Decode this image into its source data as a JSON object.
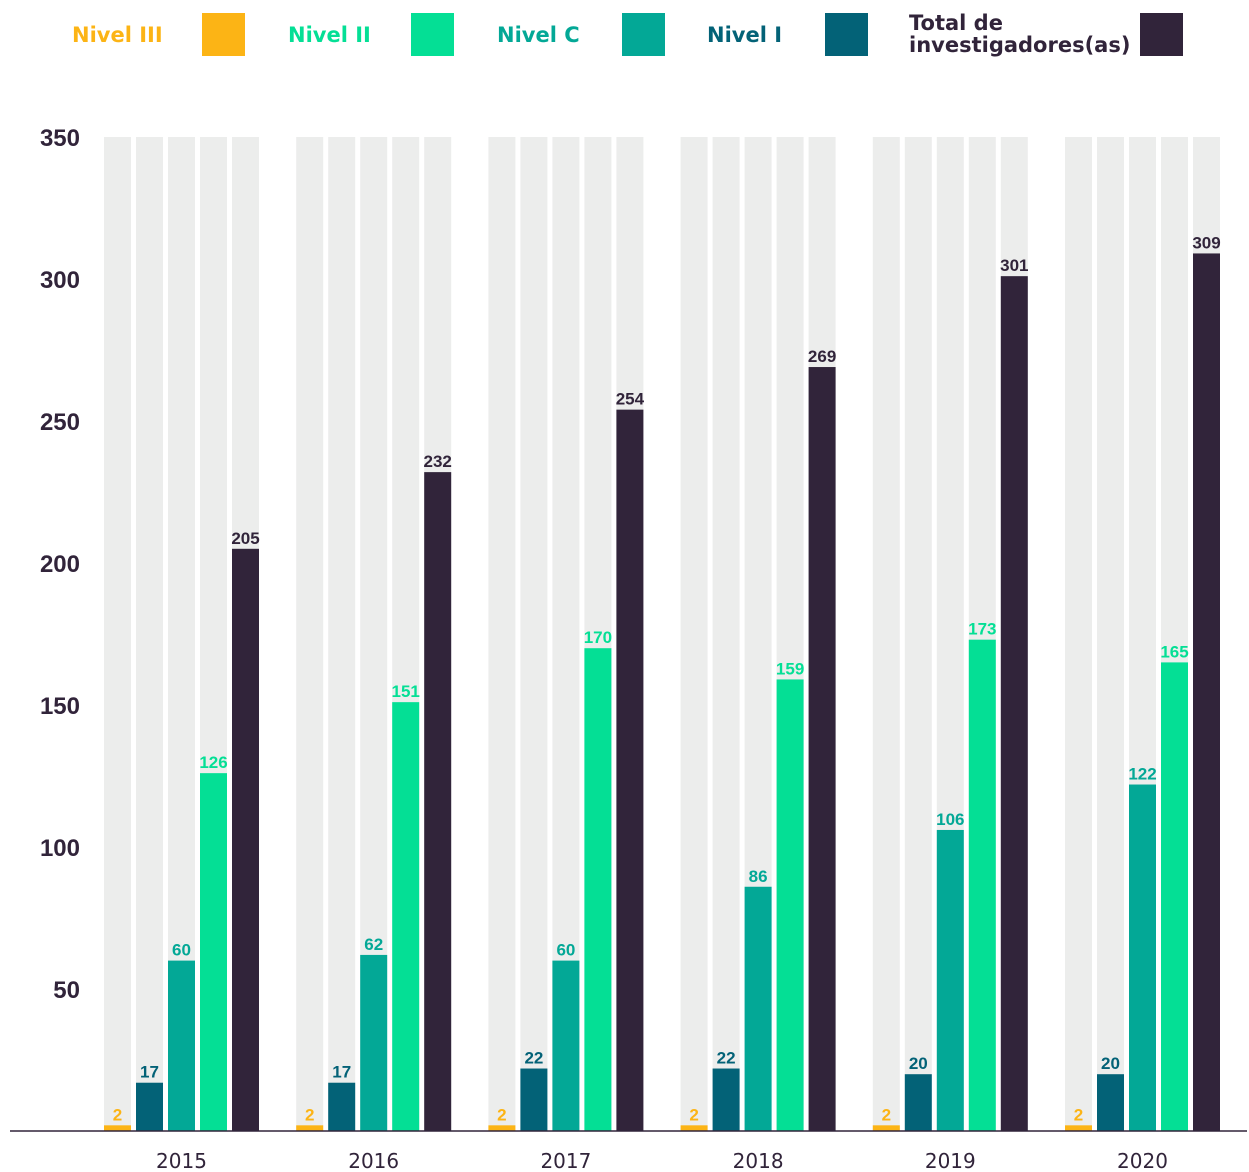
{
  "chart_data": {
    "type": "bar",
    "categories": [
      "2015",
      "2016",
      "2017",
      "2018",
      "2019",
      "2020"
    ],
    "series": [
      {
        "name": "Nivel III",
        "color": "#fcb415",
        "values": [
          2,
          2,
          2,
          2,
          2,
          2
        ]
      },
      {
        "name": "Nivel I",
        "color": "#036277",
        "values": [
          17,
          17,
          22,
          22,
          20,
          20
        ]
      },
      {
        "name": "Nivel C",
        "color": "#03a896",
        "values": [
          60,
          62,
          60,
          86,
          106,
          122
        ]
      },
      {
        "name": "Nivel II",
        "color": "#04df95",
        "values": [
          126,
          151,
          170,
          159,
          173,
          165
        ]
      },
      {
        "name": "Total de investigadores(as)",
        "color": "#31243a",
        "values": [
          205,
          232,
          254,
          269,
          301,
          309
        ]
      }
    ],
    "legend_order": [
      {
        "label": "Nivel III",
        "color": "#fcb415"
      },
      {
        "label": "Nivel II",
        "color": "#04df95"
      },
      {
        "label": "Nivel C",
        "color": "#03a896"
      },
      {
        "label": "Nivel I",
        "color": "#036277"
      },
      {
        "label_lines": [
          "Total de",
          "investigadores(as)"
        ],
        "color": "#31243a"
      }
    ],
    "yticks": [
      50,
      100,
      150,
      200,
      250,
      300,
      350
    ],
    "ylim": [
      0,
      350
    ],
    "background_bar_color": "#ecedec",
    "legend_position": "top",
    "title": "",
    "xlabel": "",
    "ylabel": ""
  }
}
